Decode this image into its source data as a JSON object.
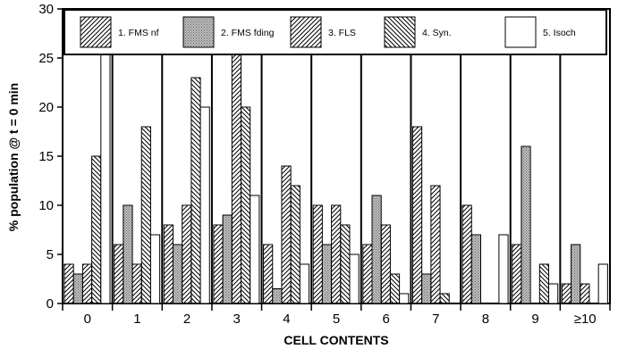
{
  "chart_data": {
    "type": "bar",
    "xlabel": "CELL CONTENTS",
    "ylabel": "% population @ t = 0 min",
    "ylim": [
      0,
      30
    ],
    "yticks": [
      0,
      5,
      10,
      15,
      20,
      25,
      30
    ],
    "categories": [
      "0",
      "1",
      "2",
      "3",
      "4",
      "5",
      "6",
      "7",
      "8",
      "9",
      "≥10"
    ],
    "legend_position": "top",
    "series": [
      {
        "name": "1. FMS nf",
        "pattern": "diag-up",
        "values": [
          4,
          6,
          8,
          8,
          6,
          10,
          6,
          18,
          10,
          6,
          2
        ]
      },
      {
        "name": "2. FMS fding",
        "pattern": "stipple",
        "values": [
          3,
          10,
          6,
          9,
          1.5,
          6,
          11,
          3,
          7,
          16,
          6
        ]
      },
      {
        "name": "3. FLS",
        "pattern": "diag-up",
        "values": [
          4,
          4,
          10,
          26,
          14,
          10,
          8,
          12,
          0,
          0,
          2
        ]
      },
      {
        "name": "4. Syn.",
        "pattern": "diag-down",
        "values": [
          15,
          18,
          23,
          20,
          12,
          8,
          3,
          1,
          0,
          4,
          0
        ]
      },
      {
        "name": "5. Isoch",
        "pattern": "empty",
        "values": [
          30,
          7,
          20,
          11,
          4,
          5,
          1,
          0,
          7,
          2,
          4
        ]
      }
    ]
  }
}
